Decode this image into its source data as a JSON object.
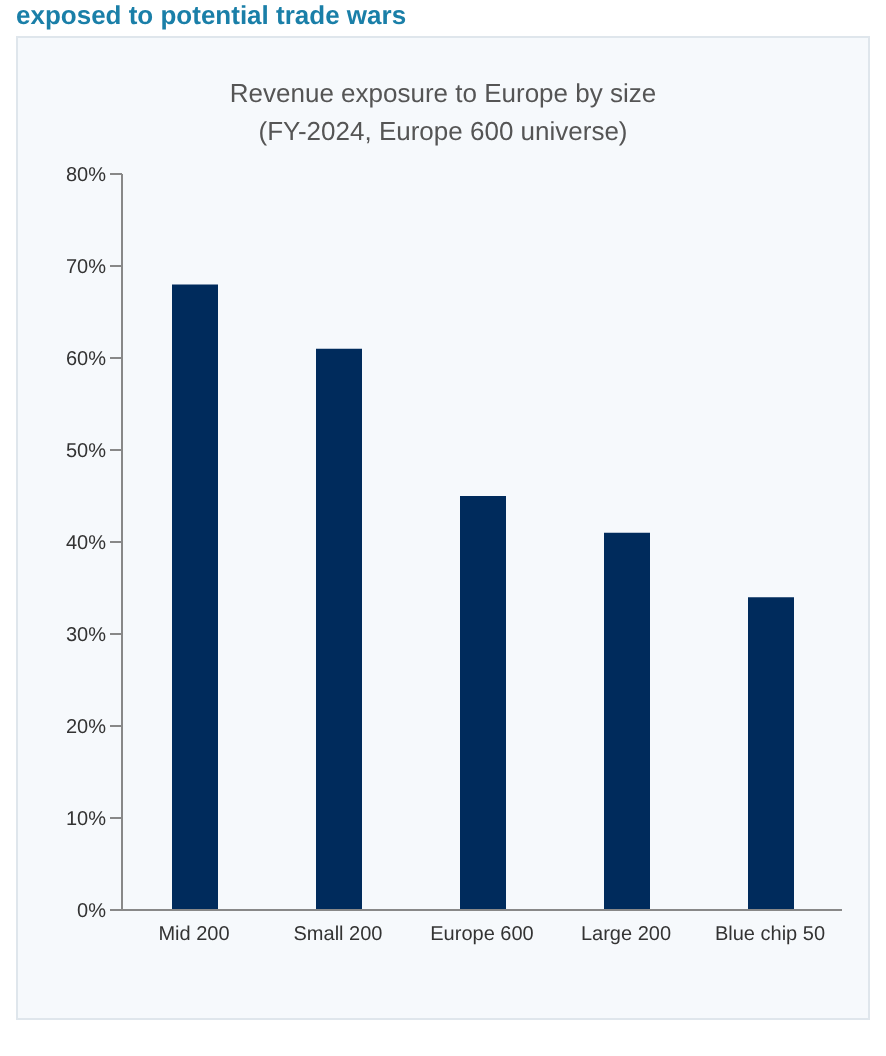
{
  "chart_data": {
    "type": "bar",
    "title": "Revenue exposure to Europe by size",
    "subtitle": "(FY-2024, Europe 600 universe)",
    "annotations": [
      "exposed to potential trade wars"
    ],
    "categories": [
      "Mid 200",
      "Small 200",
      "Europe 600",
      "Large 200",
      "Blue chip 50"
    ],
    "values": [
      68,
      61,
      45,
      41,
      34
    ],
    "color": "#002b5c",
    "ylim": [
      0,
      80
    ],
    "yticks": [
      {
        "value": 0,
        "label": "0%"
      },
      {
        "value": 10,
        "label": "10%"
      },
      {
        "value": 20,
        "label": "20%"
      },
      {
        "value": 30,
        "label": "30%"
      },
      {
        "value": 40,
        "label": "40%"
      },
      {
        "value": 50,
        "label": "50%"
      },
      {
        "value": 60,
        "label": "60%"
      },
      {
        "value": 70,
        "label": "70%"
      },
      {
        "value": 80,
        "label": "80%"
      }
    ],
    "grid": false,
    "legend": false
  }
}
